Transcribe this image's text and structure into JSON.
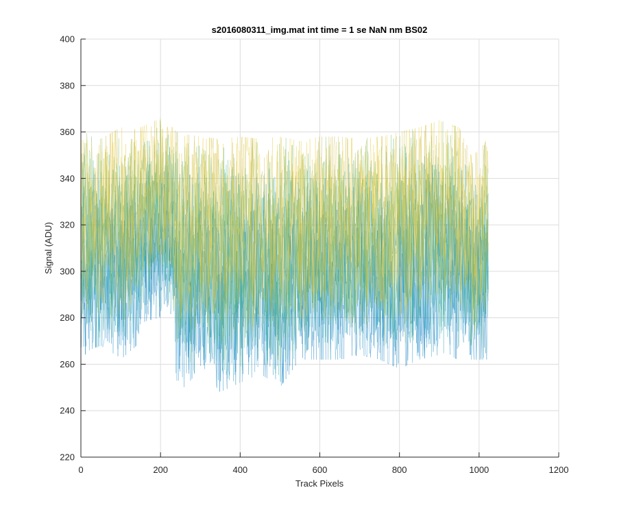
{
  "chart_data": {
    "type": "line",
    "title": "s2016080311_img.mat int time = 1 se  NaN nm BS02",
    "xlabel": "Track Pixels",
    "ylabel": "Signal (ADU)",
    "xlim": [
      0,
      1200
    ],
    "ylim": [
      220,
      400
    ],
    "xticks": [
      0,
      200,
      400,
      600,
      800,
      1000,
      1200
    ],
    "yticks": [
      220,
      240,
      260,
      280,
      300,
      320,
      340,
      360,
      380,
      400
    ],
    "grid": true,
    "legend": "none",
    "x_range": [
      1,
      1024
    ],
    "series_description": "Many overlaid noisy traces (parula colormap, blue to yellow) spanning pixels 1-1024",
    "envelope": {
      "x": [
        0,
        20,
        50,
        100,
        140,
        150,
        200,
        230,
        240,
        260,
        300,
        350,
        400,
        450,
        500,
        550,
        600,
        650,
        700,
        750,
        800,
        850,
        900,
        950,
        965,
        980,
        1000,
        1024
      ],
      "upper": [
        358,
        360,
        357,
        362,
        361,
        362,
        366,
        362,
        360,
        359,
        358,
        357,
        358,
        357,
        358,
        356,
        358,
        358,
        357,
        358,
        360,
        362,
        365,
        362,
        356,
        350,
        352,
        358
      ],
      "lower": [
        262,
        266,
        268,
        262,
        268,
        278,
        280,
        282,
        252,
        250,
        258,
        248,
        252,
        256,
        250,
        262,
        262,
        262,
        264,
        262,
        258,
        262,
        264,
        262,
        272,
        262,
        262,
        262
      ]
    },
    "colors": [
      "#0072bd",
      "#1a8cc8",
      "#20a0b0",
      "#3cb08a",
      "#80bd5e",
      "#c8b84a",
      "#e8c830"
    ]
  }
}
